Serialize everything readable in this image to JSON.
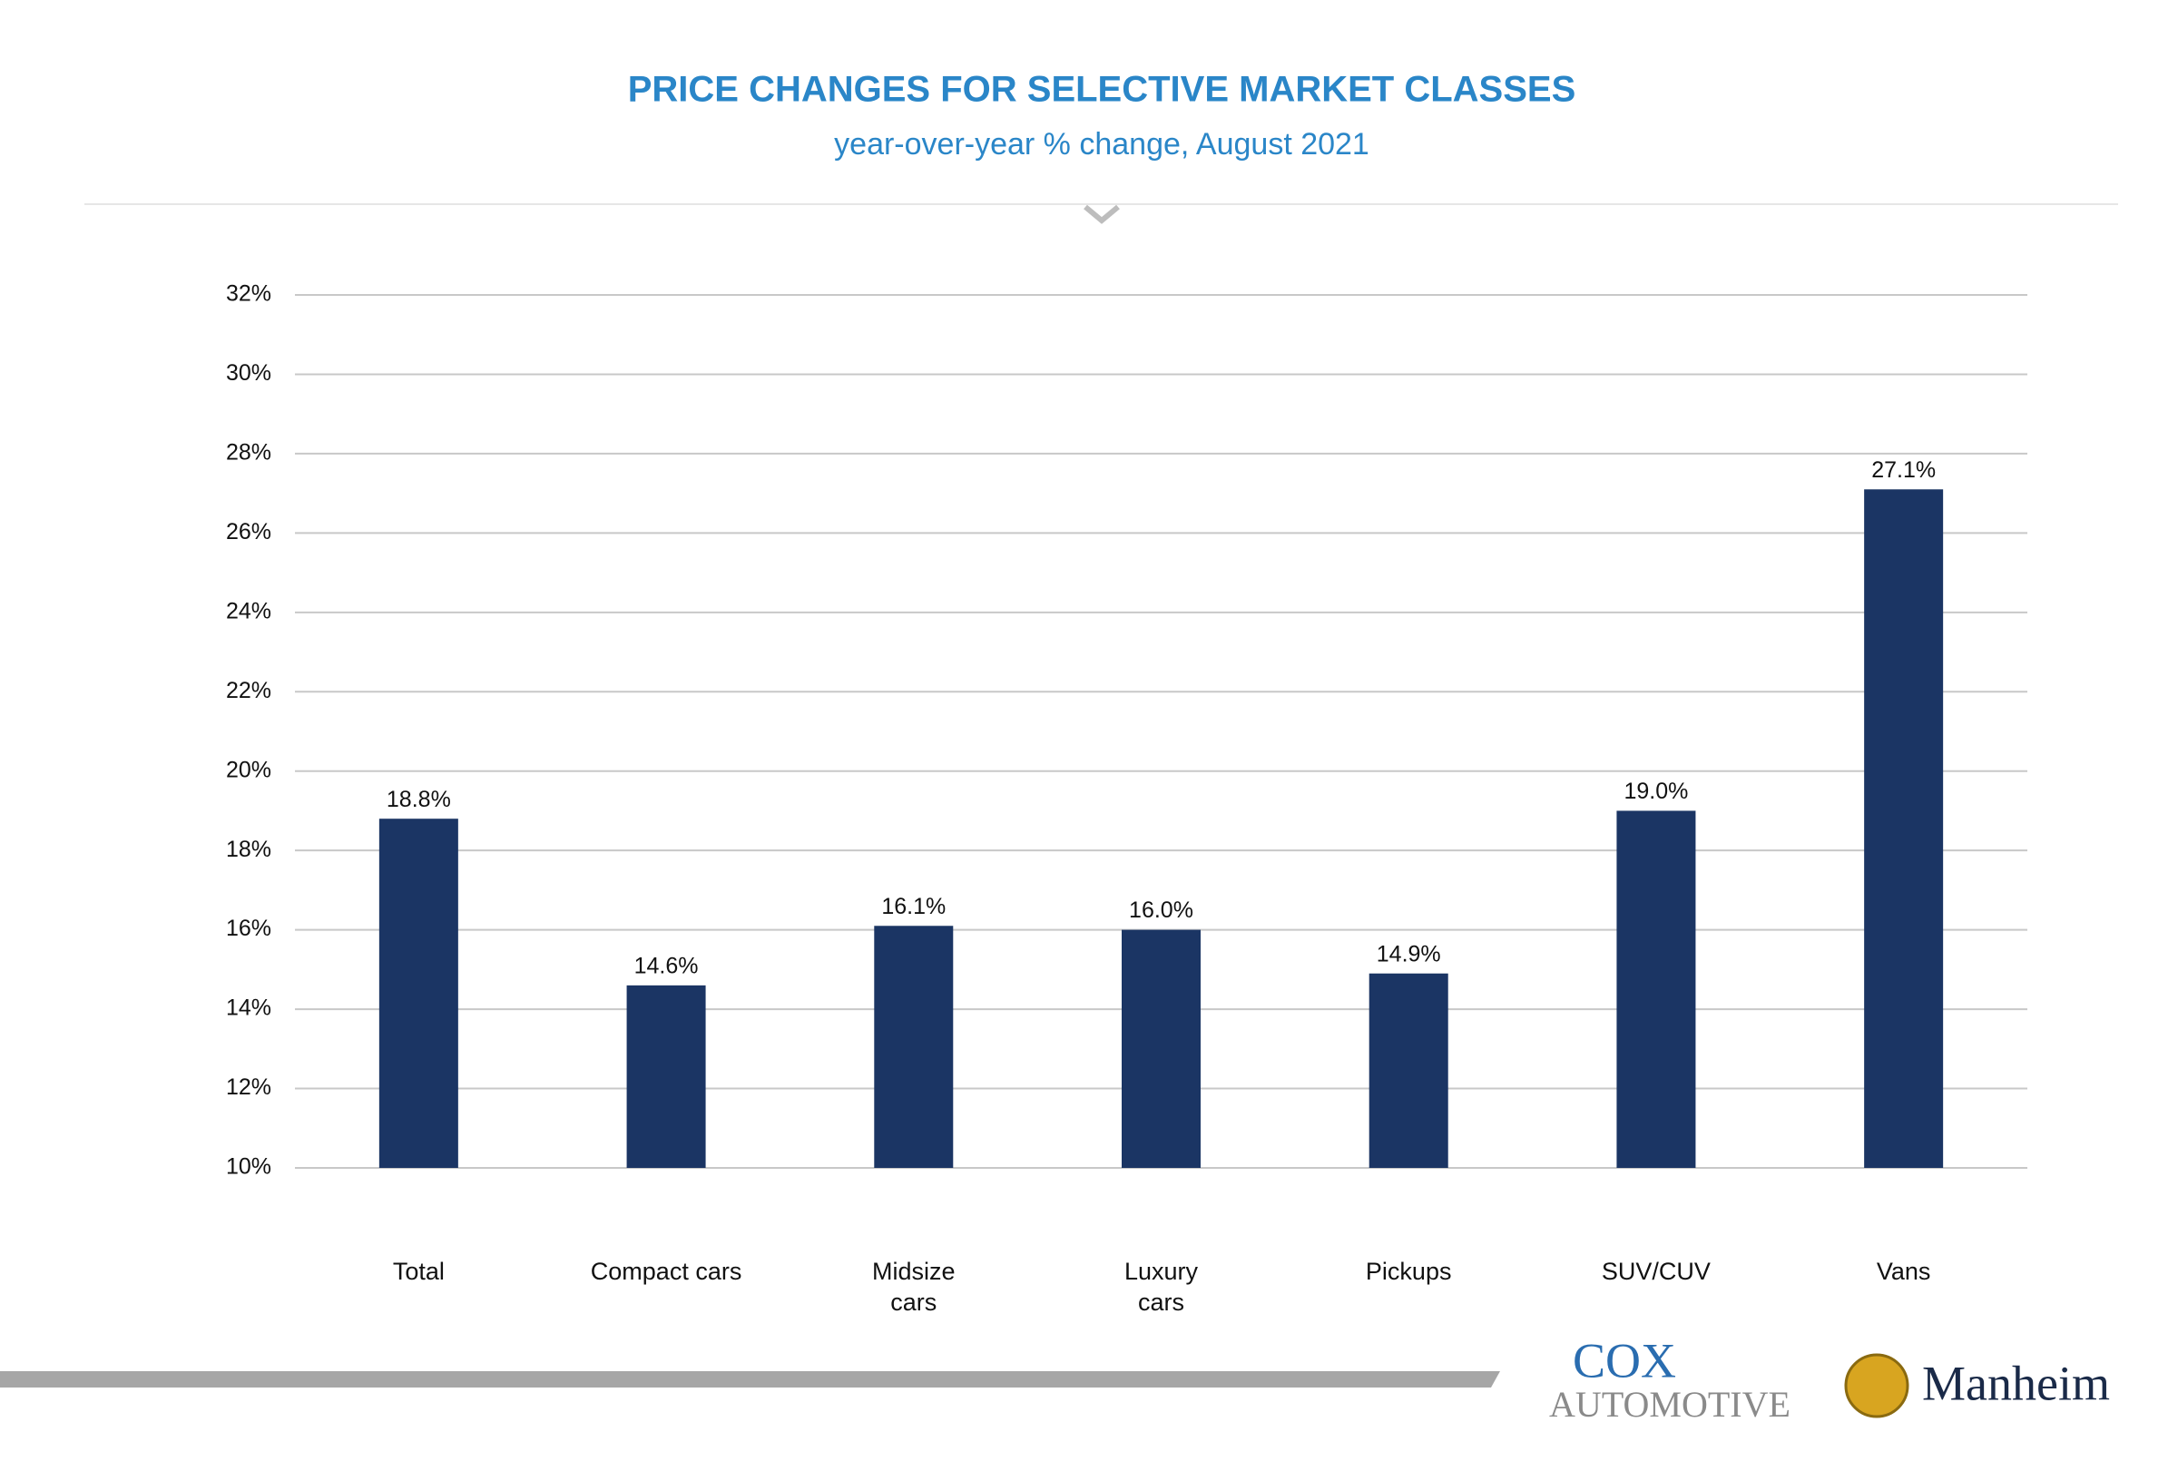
{
  "chart_data": {
    "type": "bar",
    "title": "PRICE CHANGES FOR SELECTIVE MARKET CLASSES",
    "subtitle": "year-over-year % change, August 2021",
    "categories": [
      "Total",
      "Compact cars",
      "Midsize\ncars",
      "Luxury\ncars",
      "Pickups",
      "SUV/CUV",
      "Vans"
    ],
    "values": [
      18.8,
      14.6,
      16.1,
      16.0,
      14.9,
      19.0,
      27.1
    ],
    "value_labels": [
      "18.8%",
      "14.6%",
      "16.1%",
      "16.0%",
      "14.9%",
      "19.0%",
      "27.1%"
    ],
    "color": "#1b3564",
    "ylim": [
      10,
      32
    ],
    "yticks": [
      {
        "value": 10,
        "label": "10%"
      },
      {
        "value": 12,
        "label": "12%"
      },
      {
        "value": 14,
        "label": "14%"
      },
      {
        "value": 16,
        "label": "16%"
      },
      {
        "value": 18,
        "label": "18%"
      },
      {
        "value": 20,
        "label": "20%"
      },
      {
        "value": 22,
        "label": "22%"
      },
      {
        "value": 24,
        "label": "24%"
      },
      {
        "value": 26,
        "label": "26%"
      },
      {
        "value": 28,
        "label": "28%"
      },
      {
        "value": 30,
        "label": "30%"
      },
      {
        "value": 32,
        "label": "32%"
      }
    ],
    "grid": true
  },
  "footer": {
    "cox_line1": "COX",
    "cox_line2": "AUTOMOTIVE",
    "manheim": "Manheim"
  }
}
